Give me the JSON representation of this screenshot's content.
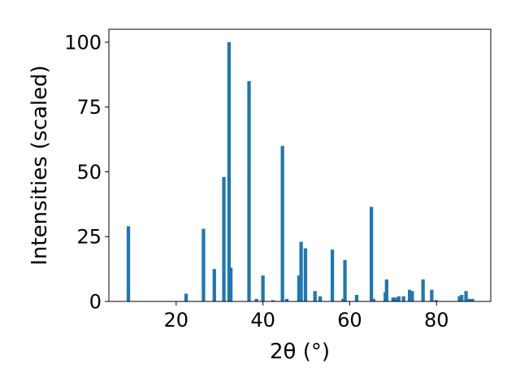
{
  "chart_data": {
    "type": "bar",
    "xlabel": "2θ (°)",
    "ylabel": "Intensities (scaled)",
    "xlim": [
      4.5,
      92.5
    ],
    "ylim": [
      0,
      105
    ],
    "xticks": [
      20,
      40,
      60,
      80
    ],
    "yticks": [
      0,
      25,
      50,
      75,
      100
    ],
    "bar_width": 0.8,
    "color": "#1f77b4",
    "x": [
      9,
      22.3,
      26.3,
      28.8,
      31,
      32.2,
      32.6,
      36.8,
      38.5,
      40,
      42.3,
      44.5,
      45.5,
      48.3,
      48.8,
      49.8,
      52,
      53.2,
      56,
      58.5,
      58.9,
      61.6,
      65,
      65.5,
      68.2,
      68.5,
      70,
      70.5,
      71.3,
      72.4,
      73.8,
      74.4,
      76.9,
      78.9,
      79.9,
      85.3,
      85.8,
      86.8,
      87.5,
      88.3
    ],
    "y": [
      29,
      3,
      28,
      12.5,
      48,
      100,
      13,
      85,
      1,
      10,
      0.5,
      60,
      1,
      10,
      23,
      20.5,
      4,
      2,
      20,
      1,
      16,
      2.5,
      36.5,
      1,
      3.5,
      8.5,
      1.5,
      1.5,
      2,
      2,
      4.5,
      4,
      8.5,
      4.5,
      0.5,
      2,
      2.5,
      4,
      1,
      1
    ]
  }
}
